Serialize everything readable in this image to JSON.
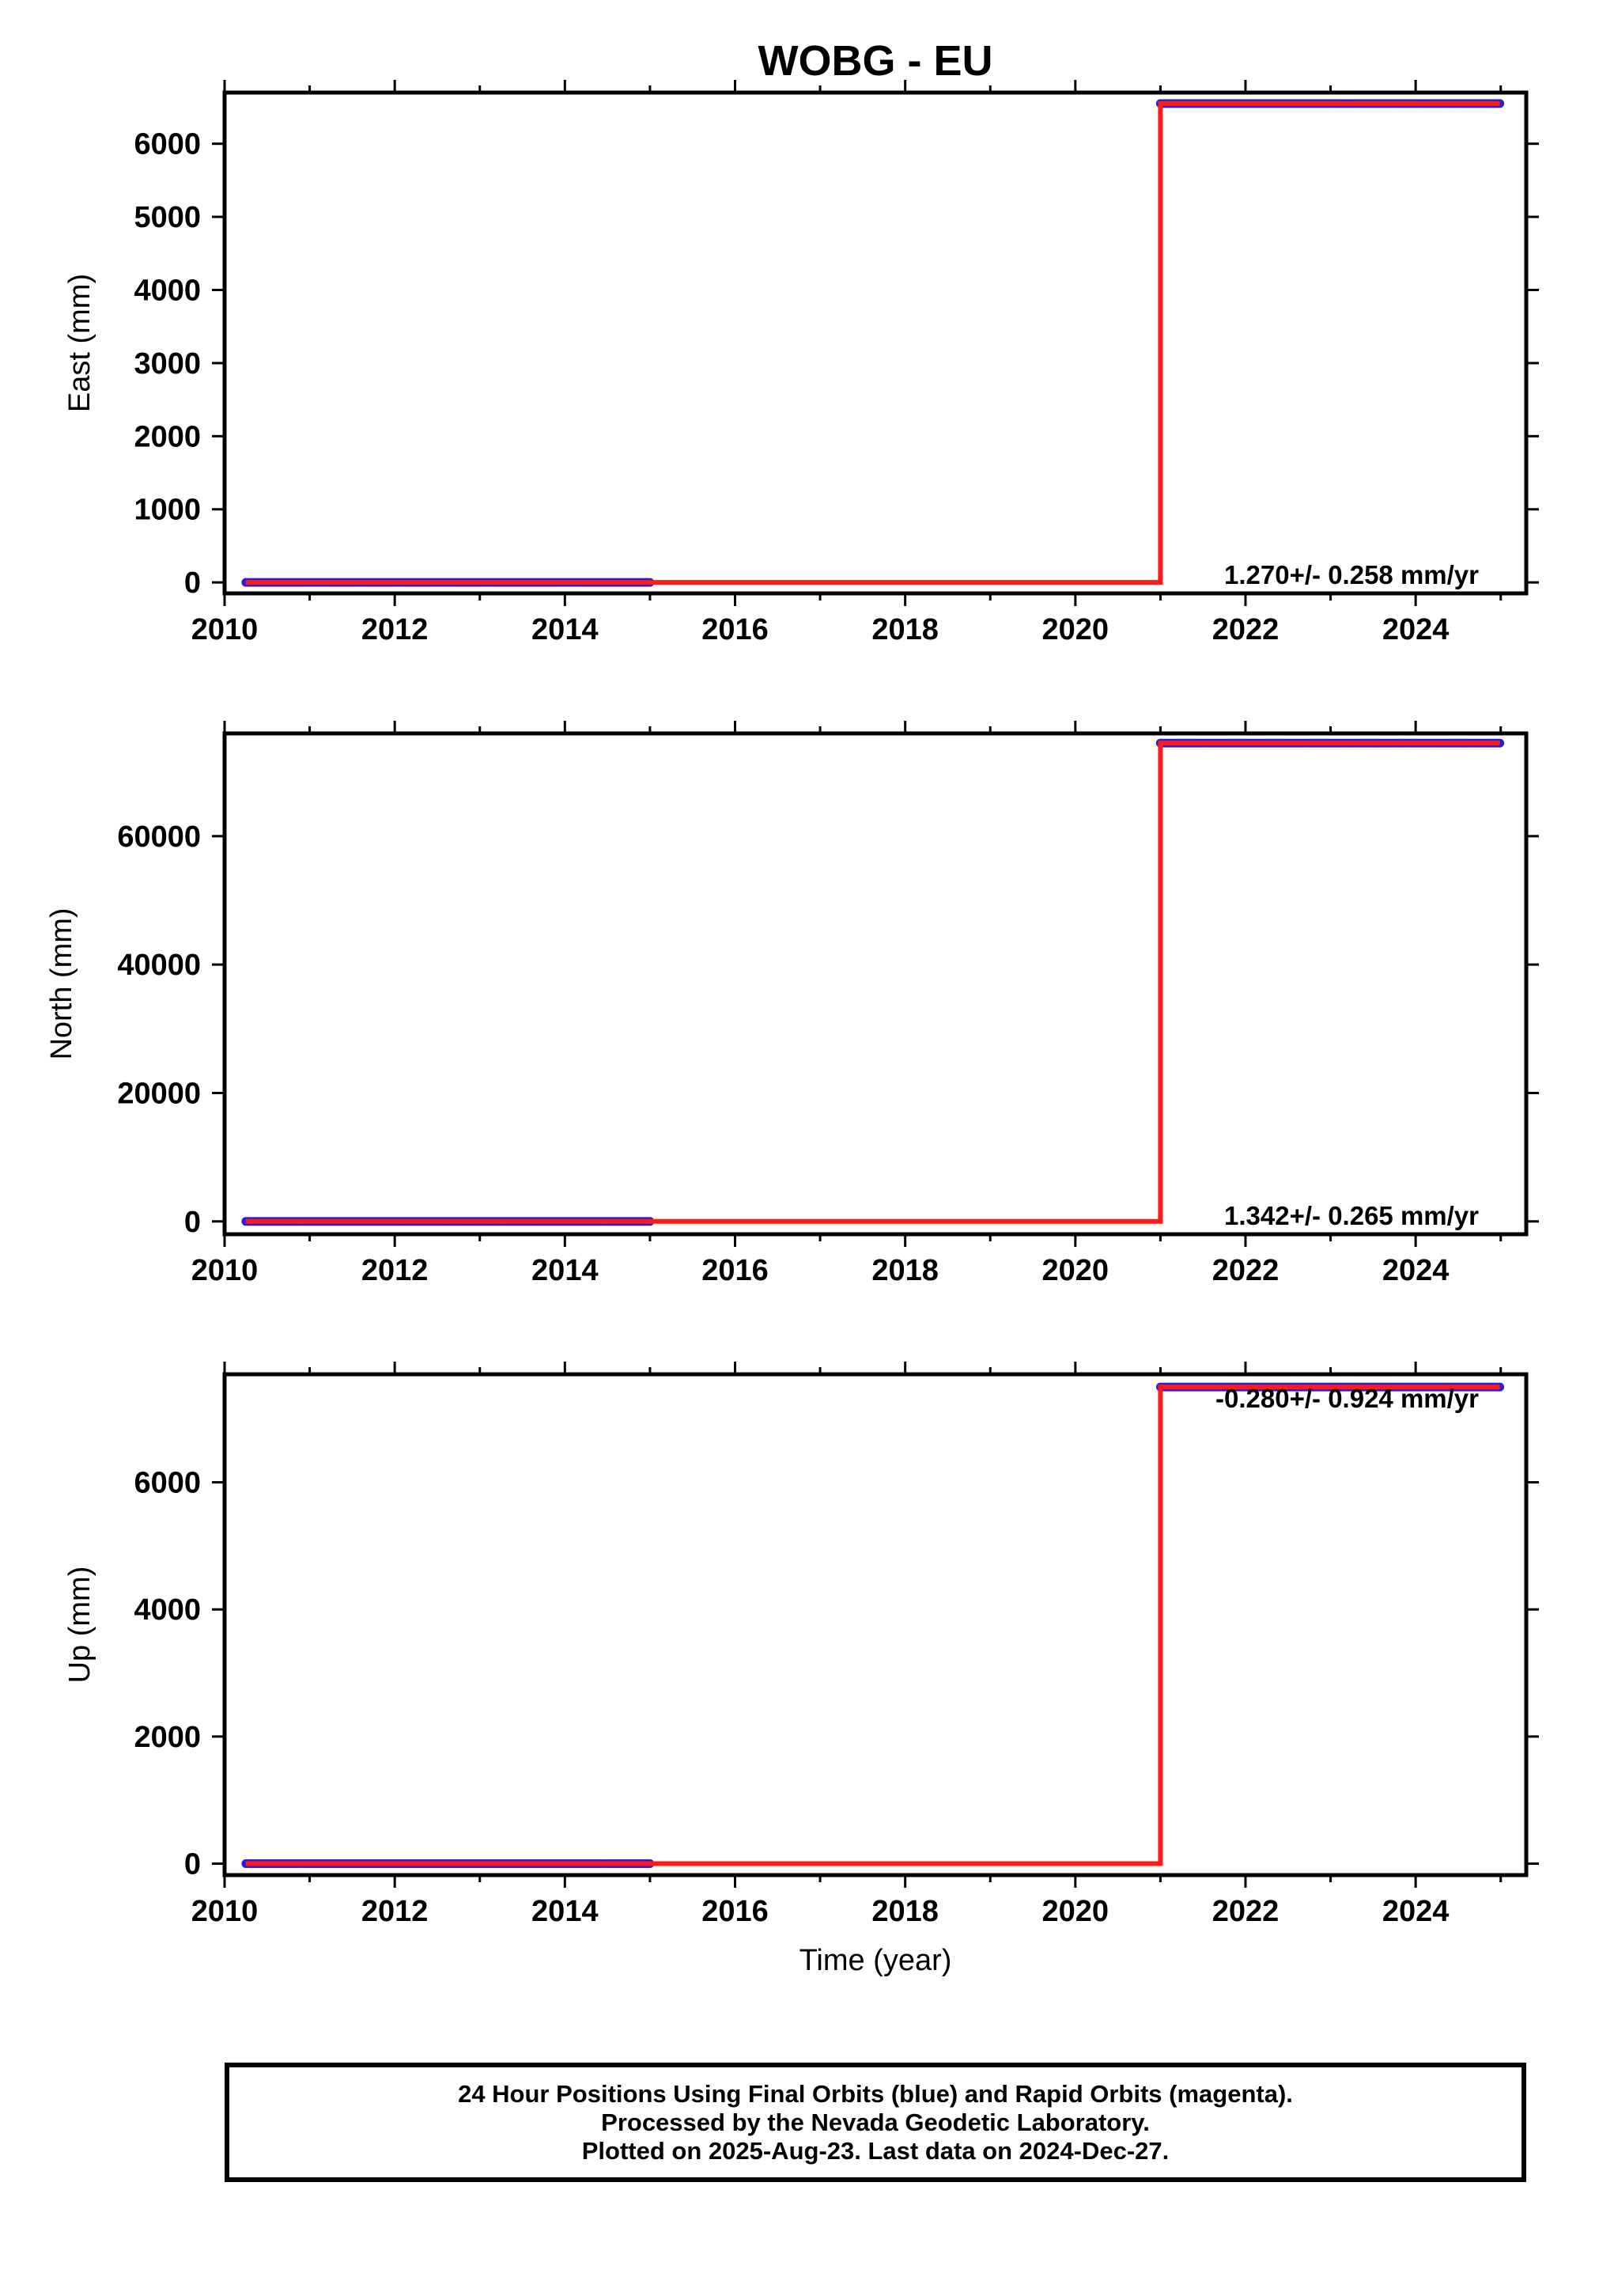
{
  "colors": {
    "final_orbits": "#2b1bd6",
    "model": "#ff1a1a",
    "axes": "#000000"
  },
  "chart_data": [
    {
      "type": "scatter",
      "title": "WOBG - EU",
      "xlabel": "",
      "ylabel": "East (mm)",
      "xlim": [
        2010,
        2025.3
      ],
      "ylim": [
        -150,
        6700
      ],
      "xticks": [
        "2010",
        "2012",
        "2014",
        "2016",
        "2018",
        "2020",
        "2022",
        "2024"
      ],
      "yticks": [
        "0",
        "1000",
        "2000",
        "3000",
        "4000",
        "5000",
        "6000"
      ],
      "series": [
        {
          "segments": [
            {
              "x_start": 2010.25,
              "x_end": 2015.0,
              "y": 0
            },
            {
              "x_start": 2021.0,
              "x_end": 2024.99,
              "y": 6550
            }
          ]
        }
      ],
      "model_line": [
        [
          2010.25,
          0
        ],
        [
          2021.0,
          0
        ],
        [
          2021.0,
          6550
        ],
        [
          2024.99,
          6550
        ]
      ],
      "annotation": "1.270+/- 0.258 mm/yr"
    },
    {
      "type": "scatter",
      "xlabel": "",
      "ylabel": "North (mm)",
      "xlim": [
        2010,
        2025.3
      ],
      "ylim": [
        -2000,
        76000
      ],
      "xticks": [
        "2010",
        "2012",
        "2014",
        "2016",
        "2018",
        "2020",
        "2022",
        "2024"
      ],
      "yticks": [
        "0",
        "20000",
        "40000",
        "60000"
      ],
      "series": [
        {
          "segments": [
            {
              "x_start": 2010.25,
              "x_end": 2015.0,
              "y": 0
            },
            {
              "x_start": 2021.0,
              "x_end": 2024.99,
              "y": 74500
            }
          ]
        }
      ],
      "model_line": [
        [
          2010.25,
          0
        ],
        [
          2021.0,
          0
        ],
        [
          2021.0,
          74500
        ],
        [
          2024.99,
          74500
        ]
      ],
      "annotation": "1.342+/- 0.265 mm/yr"
    },
    {
      "type": "scatter",
      "xlabel": "Time (year)",
      "ylabel": "Up (mm)",
      "xlim": [
        2010,
        2025.3
      ],
      "ylim": [
        -180,
        7700
      ],
      "xticks": [
        "2010",
        "2012",
        "2014",
        "2016",
        "2018",
        "2020",
        "2022",
        "2024"
      ],
      "yticks": [
        "0",
        "2000",
        "4000",
        "6000"
      ],
      "series": [
        {
          "segments": [
            {
              "x_start": 2010.25,
              "x_end": 2015.0,
              "y": 0
            },
            {
              "x_start": 2021.0,
              "x_end": 2024.99,
              "y": 7500
            }
          ]
        }
      ],
      "model_line": [
        [
          2010.25,
          0
        ],
        [
          2021.0,
          0
        ],
        [
          2021.0,
          7500
        ],
        [
          2024.99,
          7500
        ]
      ],
      "annotation": "-0.280+/- 0.924 mm/yr"
    }
  ],
  "footer": {
    "line1": "24 Hour Positions Using Final Orbits (blue) and Rapid Orbits (magenta).",
    "line2": "Processed by the Nevada Geodetic Laboratory.",
    "line3": "Plotted on 2025-Aug-23. Last data on 2024-Dec-27."
  }
}
